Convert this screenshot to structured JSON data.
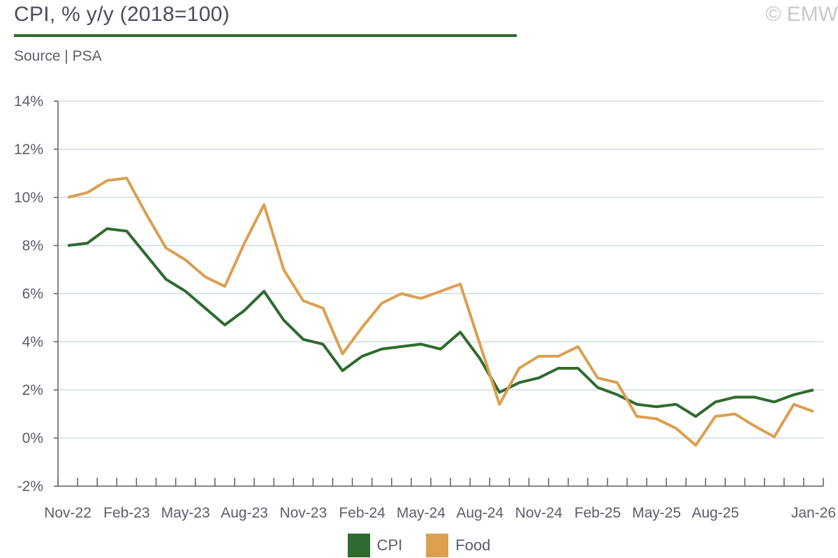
{
  "header": {
    "title": "CPI, % y/y (2018=100)",
    "copyright": "© EMW",
    "source": "Source | PSA"
  },
  "colors": {
    "accent": "#2e6b2e",
    "cpi": "#2e6b2e",
    "food": "#dc9f50",
    "grid": "#dbe4ee",
    "axis": "#5b5e6b"
  },
  "chart_data": {
    "type": "line",
    "title": "CPI, % y/y (2018=100)",
    "xlabel": "",
    "ylabel": "",
    "ylim": [
      -2,
      14
    ],
    "yticks": [
      -2,
      0,
      2,
      4,
      6,
      8,
      10,
      12,
      14
    ],
    "ytick_labels": [
      "-2%",
      "0%",
      "2%",
      "4%",
      "6%",
      "8%",
      "10%",
      "12%",
      "14%"
    ],
    "grid": true,
    "legend": "bottom-center",
    "x": [
      "Nov-22",
      "Dec-22",
      "Jan-23",
      "Feb-23",
      "Mar-23",
      "Apr-23",
      "May-23",
      "Jun-23",
      "Jul-23",
      "Aug-23",
      "Sep-23",
      "Oct-23",
      "Nov-23",
      "Dec-23",
      "Jan-24",
      "Feb-24",
      "Mar-24",
      "Apr-24",
      "May-24",
      "Jun-24",
      "Jul-24",
      "Aug-24",
      "Sep-24",
      "Oct-24",
      "Nov-24",
      "Dec-24",
      "Jan-25",
      "Feb-25",
      "Mar-25",
      "Apr-25",
      "May-25",
      "Jun-25",
      "Jul-25",
      "Aug-25",
      "Sep-25",
      "Oct-25",
      "Nov-25",
      "Dec-25",
      "Jan-26"
    ],
    "xtick_labels": [
      "Nov-22",
      "Feb-23",
      "May-23",
      "Aug-23",
      "Nov-23",
      "Feb-24",
      "May-24",
      "Aug-24",
      "Nov-24",
      "Feb-25",
      "May-25",
      "Aug-25",
      "Jan-26"
    ],
    "series": [
      {
        "name": "CPI",
        "color": "#2e6b2e",
        "values": [
          8.0,
          8.1,
          8.7,
          8.6,
          7.6,
          6.6,
          6.1,
          5.4,
          4.7,
          5.3,
          6.1,
          4.9,
          4.1,
          3.9,
          2.8,
          3.4,
          3.7,
          3.8,
          3.9,
          3.7,
          4.4,
          3.3,
          1.9,
          2.3,
          2.5,
          2.9,
          2.9,
          2.1,
          1.8,
          1.4,
          1.3,
          1.4,
          0.9,
          1.5,
          1.7,
          1.7,
          1.5,
          1.8,
          2.0
        ]
      },
      {
        "name": "Food",
        "color": "#dc9f50",
        "values": [
          10.0,
          10.2,
          10.7,
          10.8,
          9.3,
          7.9,
          7.4,
          6.7,
          6.3,
          8.1,
          9.7,
          7.0,
          5.7,
          5.4,
          3.5,
          4.6,
          5.6,
          6.0,
          5.8,
          6.1,
          6.4,
          3.9,
          1.4,
          2.9,
          3.4,
          3.4,
          3.8,
          2.5,
          2.3,
          0.9,
          0.8,
          0.4,
          -0.3,
          0.9,
          1.0,
          0.5,
          0.05,
          1.4,
          1.1
        ]
      }
    ]
  }
}
